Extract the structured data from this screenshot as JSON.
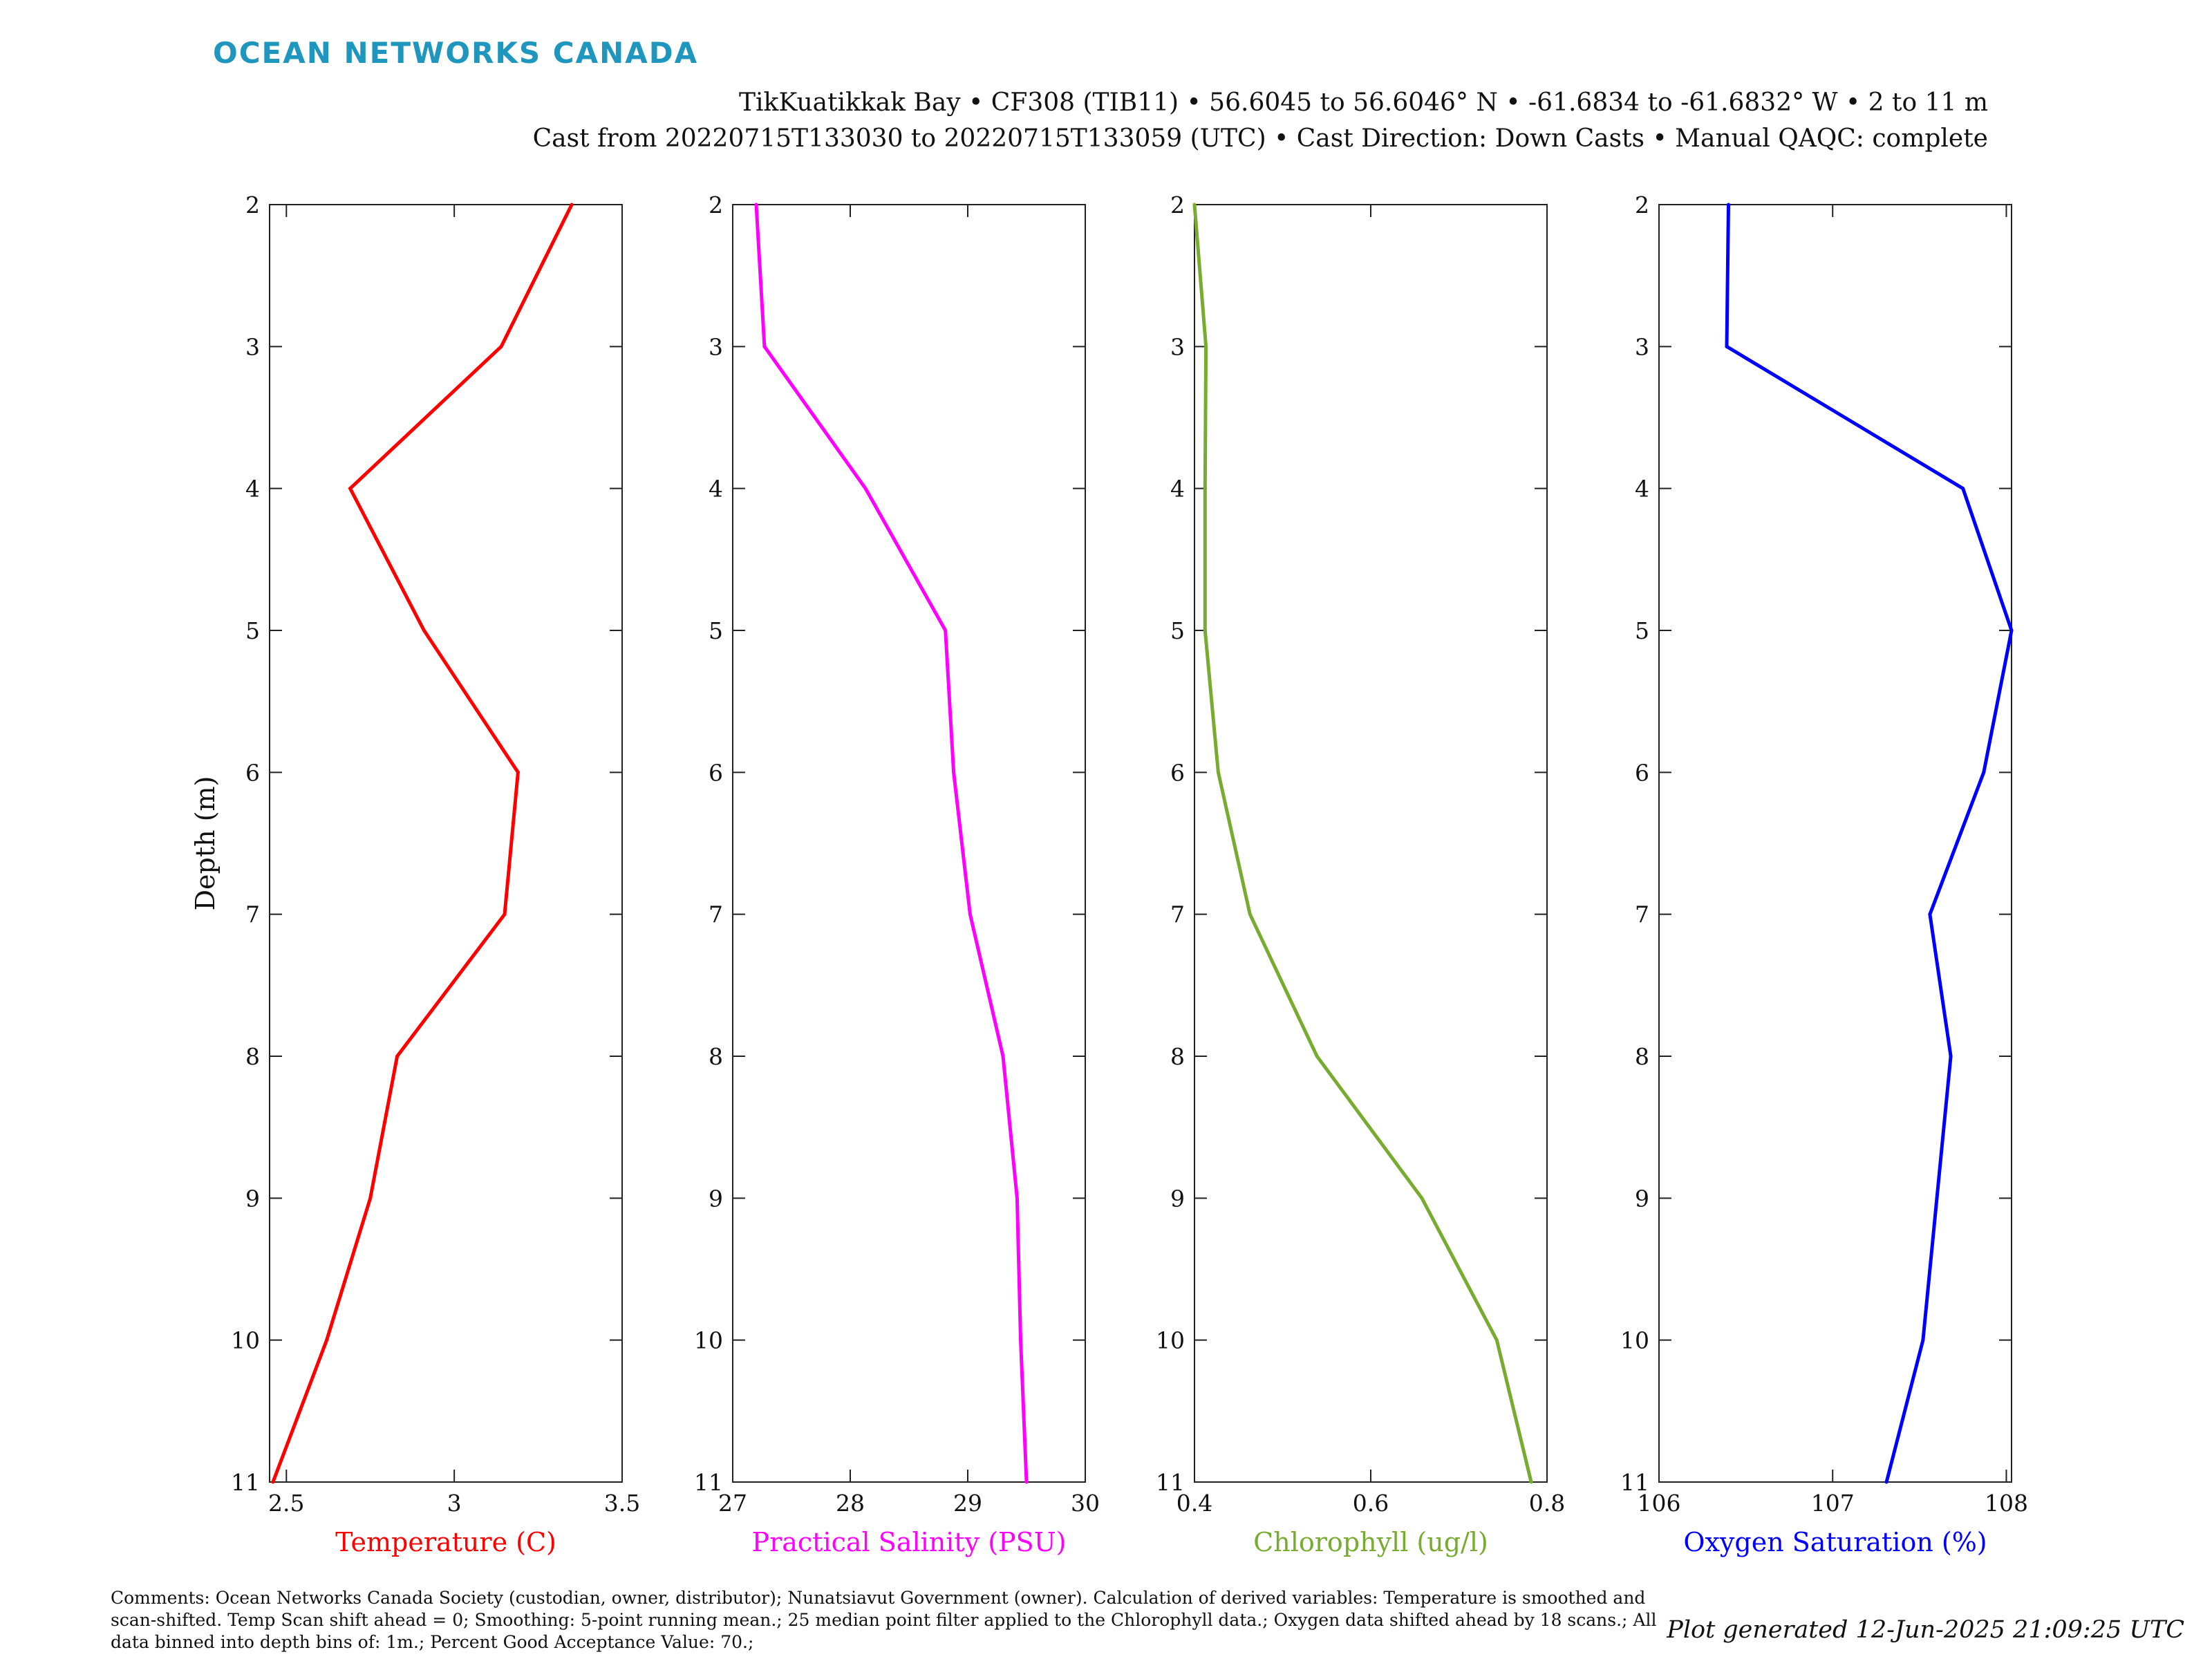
{
  "header": {
    "brand": "OCEAN NETWORKS CANADA",
    "line1": "TikKuatikkak Bay • CF308 (TIB11) • 56.6045 to 56.6046° N • -61.6834 to -61.6832° W • 2 to 11 m",
    "line2": "Cast from 20220715T133030 to 20220715T133059 (UTC) • Cast Direction: Down Casts • Manual QAQC: complete"
  },
  "chart_data": [
    {
      "type": "line",
      "xlabel": "Temperature (C)",
      "ylabel": "Depth (m)",
      "color": "#ff0000",
      "xlim": [
        2.45,
        3.5
      ],
      "xticks": [
        2.5,
        3,
        3.5
      ],
      "ylim": [
        2,
        11
      ],
      "yticks": [
        2,
        3,
        4,
        5,
        6,
        7,
        8,
        9,
        10,
        11
      ],
      "y_reversed": true,
      "grid": false,
      "depth": [
        2,
        3,
        4,
        5,
        6,
        7,
        8,
        9,
        10,
        11
      ],
      "values": [
        3.35,
        3.14,
        2.69,
        2.91,
        3.19,
        3.15,
        2.83,
        2.75,
        2.62,
        2.46
      ]
    },
    {
      "type": "line",
      "xlabel": "Practical Salinity (PSU)",
      "ylabel": "",
      "color": "#ff00ff",
      "xlim": [
        27,
        30
      ],
      "xticks": [
        27,
        28,
        29,
        30
      ],
      "ylim": [
        2,
        11
      ],
      "yticks": [
        2,
        3,
        4,
        5,
        6,
        7,
        8,
        9,
        10,
        11
      ],
      "y_reversed": true,
      "grid": false,
      "depth": [
        2,
        3,
        4,
        5,
        6,
        7,
        8,
        9,
        10,
        11
      ],
      "values": [
        27.2,
        27.27,
        28.13,
        28.81,
        28.88,
        29.02,
        29.3,
        29.42,
        29.45,
        29.5
      ]
    },
    {
      "type": "line",
      "xlabel": "Chlorophyll (ug/l)",
      "ylabel": "",
      "color": "#77ac30",
      "xlim": [
        0.4,
        0.8
      ],
      "xticks": [
        0.4,
        0.6,
        0.8
      ],
      "ylim": [
        2,
        11
      ],
      "yticks": [
        2,
        3,
        4,
        5,
        6,
        7,
        8,
        9,
        10,
        11
      ],
      "y_reversed": true,
      "grid": false,
      "depth": [
        2,
        3,
        4,
        5,
        6,
        7,
        8,
        9,
        10,
        11
      ],
      "values": [
        0.4,
        0.413,
        0.412,
        0.412,
        0.427,
        0.463,
        0.539,
        0.658,
        0.743,
        0.782
      ]
    },
    {
      "type": "line",
      "xlabel": "Oxygen Saturation (%)",
      "ylabel": "",
      "color": "#0000ff",
      "xlim": [
        106,
        108.03
      ],
      "xticks": [
        106,
        107,
        108
      ],
      "ylim": [
        2,
        11
      ],
      "yticks": [
        2,
        3,
        4,
        5,
        6,
        7,
        8,
        9,
        10,
        11
      ],
      "y_reversed": true,
      "grid": false,
      "depth": [
        2,
        3,
        4,
        5,
        6,
        7,
        8,
        9,
        10,
        11
      ],
      "values": [
        106.4,
        106.39,
        107.75,
        108.03,
        107.87,
        107.56,
        107.68,
        107.6,
        107.52,
        107.31
      ]
    }
  ],
  "footer": {
    "comments": "Comments: Ocean Networks Canada Society (custodian, owner, distributor); Nunatsiavut Government (owner). Calculation of derived variables: Temperature is smoothed and scan-shifted. Temp Scan shift ahead = 0; Smoothing: 5-point running mean.; 25 median point filter applied to the Chlorophyll data.; Oxygen data shifted ahead by 18 scans.; All data binned into depth bins of: 1m.; Percent Good Acceptance Value: 70.;",
    "generated": "Plot generated 12-Jun-2025 21:09:25 UTC"
  }
}
